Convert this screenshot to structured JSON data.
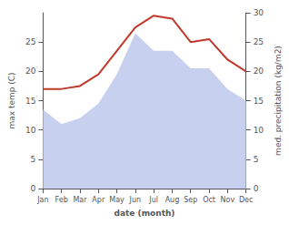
{
  "chart_data": {
    "type": "line",
    "categories": [
      "Jan",
      "Feb",
      "Mar",
      "Apr",
      "May",
      "Jun",
      "Jul",
      "Aug",
      "Sep",
      "Oct",
      "Nov",
      "Dec"
    ],
    "series": [
      {
        "type": "area",
        "color": "#c8d0f0",
        "values": [
          13.5,
          11.0,
          12.0,
          14.5,
          19.5,
          26.5,
          23.5,
          23.5,
          20.5,
          20.5,
          17.0,
          15.0
        ]
      },
      {
        "type": "line",
        "color": "#c0392b",
        "axis": "y2",
        "values": [
          17.0,
          17.0,
          17.5,
          19.5,
          23.5,
          27.5,
          29.5,
          29.0,
          25.0,
          25.5,
          22.0,
          20.0
        ]
      }
    ],
    "xlabel": "date (month)",
    "ylabel": "max temp (C)",
    "y2label": "med. precipitation (kg/m2)",
    "ylim": [
      0,
      30
    ],
    "yticks": [
      0,
      5,
      10,
      15,
      20,
      25
    ],
    "y2lim": [
      0,
      30
    ],
    "y2ticks": [
      0,
      5,
      10,
      15,
      20,
      25,
      30
    ],
    "grid": false
  }
}
